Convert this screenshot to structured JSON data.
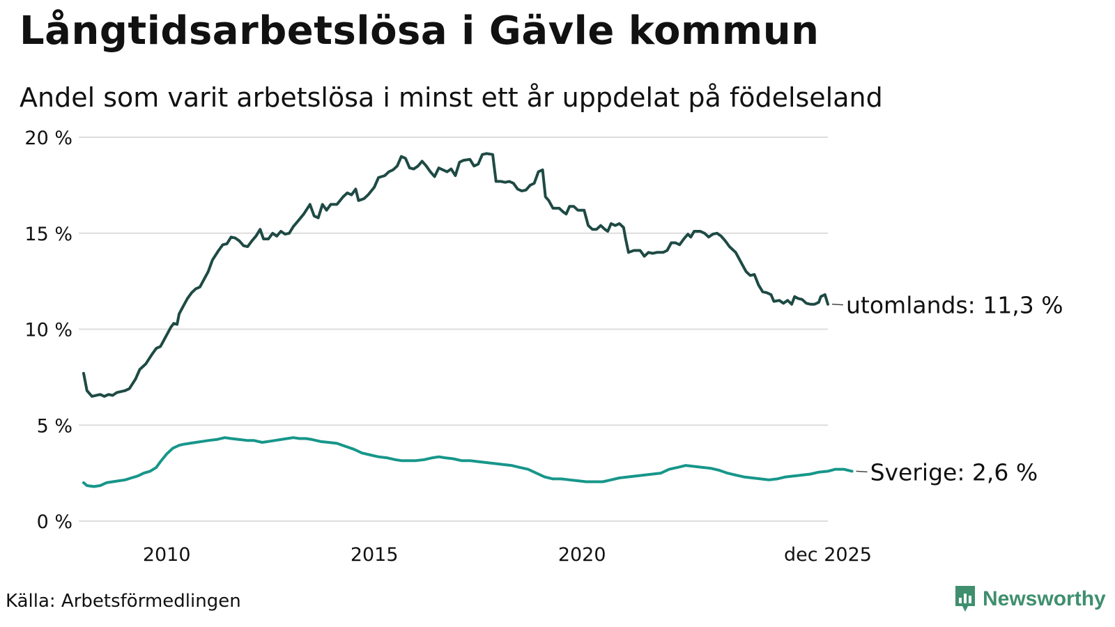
{
  "title": "Långtidsarbetslösa i Gävle kommun",
  "subtitle": "Andel som varit arbetslösa i minst ett år uppdelat på födelseland",
  "source": "Källa: Arbetsförmedlingen",
  "brand": "Newsworthy",
  "colors": {
    "utomlands": "#1e4a44",
    "sverige": "#17968a",
    "grid": "#dddddd",
    "brand": "#3f8f6e"
  },
  "chart_data": {
    "type": "line",
    "title": "Långtidsarbetslösa i Gävle kommun",
    "subtitle": "Andel som varit arbetslösa i minst ett år uppdelat på födelseland",
    "xlabel": "",
    "ylabel": "",
    "xlim": [
      2008.0,
      2025.92
    ],
    "ylim": [
      0,
      20
    ],
    "y_ticks": [
      0,
      5,
      10,
      15,
      20
    ],
    "y_tick_labels": [
      "0 %",
      "5 %",
      "10 %",
      "15 %",
      "20 %"
    ],
    "x_ticks": [
      2010.0,
      2015.0,
      2020.0,
      2025.92
    ],
    "x_tick_labels": [
      "2010",
      "2015",
      "2020",
      "dec 2025"
    ],
    "grid": true,
    "series": [
      {
        "name": "utomlands",
        "end_label": "utomlands: 11,3 %",
        "color": "#1e4a44",
        "points": [
          [
            2008.0,
            7.7
          ],
          [
            2008.08,
            6.8
          ],
          [
            2008.2,
            6.5
          ],
          [
            2008.4,
            6.6
          ],
          [
            2008.5,
            6.5
          ],
          [
            2008.6,
            6.6
          ],
          [
            2008.7,
            6.55
          ],
          [
            2008.8,
            6.7
          ],
          [
            2009.0,
            6.8
          ],
          [
            2009.1,
            6.9
          ],
          [
            2009.25,
            7.4
          ],
          [
            2009.35,
            7.9
          ],
          [
            2009.5,
            8.2
          ],
          [
            2009.65,
            8.7
          ],
          [
            2009.75,
            9.0
          ],
          [
            2009.85,
            9.1
          ],
          [
            2010.0,
            9.7
          ],
          [
            2010.1,
            10.1
          ],
          [
            2010.17,
            10.3
          ],
          [
            2010.25,
            10.25
          ],
          [
            2010.3,
            10.8
          ],
          [
            2010.4,
            11.2
          ],
          [
            2010.5,
            11.6
          ],
          [
            2010.6,
            11.9
          ],
          [
            2010.7,
            12.1
          ],
          [
            2010.8,
            12.2
          ],
          [
            2010.9,
            12.6
          ],
          [
            2011.0,
            13.0
          ],
          [
            2011.1,
            13.6
          ],
          [
            2011.25,
            14.1
          ],
          [
            2011.35,
            14.4
          ],
          [
            2011.45,
            14.45
          ],
          [
            2011.55,
            14.8
          ],
          [
            2011.65,
            14.75
          ],
          [
            2011.75,
            14.6
          ],
          [
            2011.85,
            14.35
          ],
          [
            2011.95,
            14.3
          ],
          [
            2012.05,
            14.6
          ],
          [
            2012.15,
            14.85
          ],
          [
            2012.25,
            15.2
          ],
          [
            2012.33,
            14.7
          ],
          [
            2012.45,
            14.7
          ],
          [
            2012.55,
            15.0
          ],
          [
            2012.65,
            14.85
          ],
          [
            2012.75,
            15.1
          ],
          [
            2012.85,
            14.95
          ],
          [
            2012.95,
            15.0
          ],
          [
            2013.05,
            15.35
          ],
          [
            2013.15,
            15.6
          ],
          [
            2013.3,
            16.0
          ],
          [
            2013.45,
            16.5
          ],
          [
            2013.55,
            15.9
          ],
          [
            2013.65,
            15.8
          ],
          [
            2013.75,
            16.5
          ],
          [
            2013.85,
            16.2
          ],
          [
            2013.95,
            16.5
          ],
          [
            2014.1,
            16.5
          ],
          [
            2014.25,
            16.9
          ],
          [
            2014.35,
            17.1
          ],
          [
            2014.45,
            17.0
          ],
          [
            2014.55,
            17.3
          ],
          [
            2014.62,
            16.7
          ],
          [
            2014.75,
            16.8
          ],
          [
            2014.85,
            17.0
          ],
          [
            2015.0,
            17.4
          ],
          [
            2015.1,
            17.9
          ],
          [
            2015.25,
            18.0
          ],
          [
            2015.35,
            18.2
          ],
          [
            2015.45,
            18.3
          ],
          [
            2015.55,
            18.5
          ],
          [
            2015.65,
            19.0
          ],
          [
            2015.75,
            18.9
          ],
          [
            2015.85,
            18.4
          ],
          [
            2015.95,
            18.35
          ],
          [
            2016.05,
            18.5
          ],
          [
            2016.15,
            18.75
          ],
          [
            2016.25,
            18.5
          ],
          [
            2016.35,
            18.2
          ],
          [
            2016.45,
            17.95
          ],
          [
            2016.55,
            18.4
          ],
          [
            2016.65,
            18.3
          ],
          [
            2016.75,
            18.2
          ],
          [
            2016.85,
            18.35
          ],
          [
            2016.95,
            18.0
          ],
          [
            2017.05,
            18.7
          ],
          [
            2017.15,
            18.8
          ],
          [
            2017.3,
            18.85
          ],
          [
            2017.4,
            18.5
          ],
          [
            2017.5,
            18.6
          ],
          [
            2017.6,
            19.1
          ],
          [
            2017.7,
            19.15
          ],
          [
            2017.85,
            19.1
          ],
          [
            2017.93,
            17.7
          ],
          [
            2018.05,
            17.7
          ],
          [
            2018.15,
            17.65
          ],
          [
            2018.25,
            17.7
          ],
          [
            2018.35,
            17.6
          ],
          [
            2018.45,
            17.3
          ],
          [
            2018.55,
            17.2
          ],
          [
            2018.65,
            17.25
          ],
          [
            2018.75,
            17.5
          ],
          [
            2018.85,
            17.6
          ],
          [
            2018.95,
            18.2
          ],
          [
            2019.05,
            18.3
          ],
          [
            2019.12,
            16.9
          ],
          [
            2019.2,
            16.7
          ],
          [
            2019.3,
            16.3
          ],
          [
            2019.45,
            16.3
          ],
          [
            2019.55,
            16.1
          ],
          [
            2019.62,
            16.0
          ],
          [
            2019.7,
            16.4
          ],
          [
            2019.8,
            16.4
          ],
          [
            2019.9,
            16.2
          ],
          [
            2020.05,
            16.2
          ],
          [
            2020.15,
            15.4
          ],
          [
            2020.25,
            15.2
          ],
          [
            2020.35,
            15.2
          ],
          [
            2020.45,
            15.4
          ],
          [
            2020.55,
            15.2
          ],
          [
            2020.62,
            15.1
          ],
          [
            2020.7,
            15.5
          ],
          [
            2020.8,
            15.4
          ],
          [
            2020.9,
            15.5
          ],
          [
            2021.0,
            15.3
          ],
          [
            2021.05,
            14.7
          ],
          [
            2021.12,
            14.0
          ],
          [
            2021.25,
            14.1
          ],
          [
            2021.4,
            14.1
          ],
          [
            2021.5,
            13.8
          ],
          [
            2021.6,
            14.0
          ],
          [
            2021.7,
            13.95
          ],
          [
            2021.8,
            14.0
          ],
          [
            2021.95,
            14.0
          ],
          [
            2022.05,
            14.1
          ],
          [
            2022.15,
            14.5
          ],
          [
            2022.25,
            14.5
          ],
          [
            2022.35,
            14.4
          ],
          [
            2022.45,
            14.7
          ],
          [
            2022.55,
            14.95
          ],
          [
            2022.62,
            14.8
          ],
          [
            2022.7,
            15.1
          ],
          [
            2022.85,
            15.1
          ],
          [
            2022.95,
            15.0
          ],
          [
            2023.05,
            14.8
          ],
          [
            2023.15,
            14.95
          ],
          [
            2023.25,
            15.0
          ],
          [
            2023.35,
            14.85
          ],
          [
            2023.45,
            14.6
          ],
          [
            2023.55,
            14.3
          ],
          [
            2023.7,
            14.0
          ],
          [
            2023.85,
            13.4
          ],
          [
            2023.95,
            13.0
          ],
          [
            2024.05,
            12.8
          ],
          [
            2024.15,
            12.85
          ],
          [
            2024.25,
            12.3
          ],
          [
            2024.35,
            11.95
          ],
          [
            2024.45,
            11.9
          ],
          [
            2024.55,
            11.8
          ],
          [
            2024.62,
            11.45
          ],
          [
            2024.75,
            11.5
          ],
          [
            2024.85,
            11.35
          ],
          [
            2024.95,
            11.5
          ],
          [
            2025.05,
            11.3
          ],
          [
            2025.12,
            11.7
          ],
          [
            2025.2,
            11.6
          ],
          [
            2025.3,
            11.55
          ],
          [
            2025.4,
            11.35
          ],
          [
            2025.5,
            11.3
          ],
          [
            2025.6,
            11.3
          ],
          [
            2025.7,
            11.4
          ],
          [
            2025.75,
            11.7
          ],
          [
            2025.85,
            11.8
          ],
          [
            2025.92,
            11.3
          ]
        ]
      },
      {
        "name": "Sverige",
        "end_label": "Sverige:  2,6 %",
        "color": "#17968a",
        "points": [
          [
            2008.0,
            2.0
          ],
          [
            2008.08,
            1.85
          ],
          [
            2008.25,
            1.8
          ],
          [
            2008.4,
            1.85
          ],
          [
            2008.55,
            2.0
          ],
          [
            2008.7,
            2.05
          ],
          [
            2008.85,
            2.1
          ],
          [
            2009.0,
            2.15
          ],
          [
            2009.15,
            2.25
          ],
          [
            2009.3,
            2.35
          ],
          [
            2009.45,
            2.5
          ],
          [
            2009.6,
            2.6
          ],
          [
            2009.75,
            2.8
          ],
          [
            2009.85,
            3.1
          ],
          [
            2010.0,
            3.5
          ],
          [
            2010.15,
            3.8
          ],
          [
            2010.3,
            3.95
          ],
          [
            2010.4,
            4.0
          ],
          [
            2010.55,
            4.05
          ],
          [
            2010.7,
            4.1
          ],
          [
            2010.85,
            4.15
          ],
          [
            2011.0,
            4.2
          ],
          [
            2011.2,
            4.25
          ],
          [
            2011.4,
            4.35
          ],
          [
            2011.55,
            4.3
          ],
          [
            2011.75,
            4.25
          ],
          [
            2011.95,
            4.2
          ],
          [
            2012.1,
            4.2
          ],
          [
            2012.3,
            4.1
          ],
          [
            2012.45,
            4.15
          ],
          [
            2012.6,
            4.2
          ],
          [
            2012.75,
            4.25
          ],
          [
            2012.9,
            4.3
          ],
          [
            2013.05,
            4.35
          ],
          [
            2013.2,
            4.3
          ],
          [
            2013.35,
            4.3
          ],
          [
            2013.5,
            4.25
          ],
          [
            2013.7,
            4.15
          ],
          [
            2013.9,
            4.1
          ],
          [
            2014.1,
            4.05
          ],
          [
            2014.3,
            3.9
          ],
          [
            2014.5,
            3.75
          ],
          [
            2014.7,
            3.55
          ],
          [
            2014.9,
            3.45
          ],
          [
            2015.1,
            3.35
          ],
          [
            2015.3,
            3.3
          ],
          [
            2015.5,
            3.2
          ],
          [
            2015.65,
            3.15
          ],
          [
            2015.8,
            3.15
          ],
          [
            2016.0,
            3.15
          ],
          [
            2016.2,
            3.2
          ],
          [
            2016.4,
            3.3
          ],
          [
            2016.55,
            3.35
          ],
          [
            2016.7,
            3.3
          ],
          [
            2016.9,
            3.25
          ],
          [
            2017.1,
            3.15
          ],
          [
            2017.3,
            3.15
          ],
          [
            2017.5,
            3.1
          ],
          [
            2017.7,
            3.05
          ],
          [
            2017.9,
            3.0
          ],
          [
            2018.1,
            2.95
          ],
          [
            2018.3,
            2.9
          ],
          [
            2018.5,
            2.8
          ],
          [
            2018.7,
            2.7
          ],
          [
            2018.9,
            2.5
          ],
          [
            2019.1,
            2.3
          ],
          [
            2019.3,
            2.2
          ],
          [
            2019.5,
            2.2
          ],
          [
            2019.7,
            2.15
          ],
          [
            2019.9,
            2.1
          ],
          [
            2020.1,
            2.05
          ],
          [
            2020.3,
            2.05
          ],
          [
            2020.5,
            2.05
          ],
          [
            2020.7,
            2.15
          ],
          [
            2020.9,
            2.25
          ],
          [
            2021.1,
            2.3
          ],
          [
            2021.3,
            2.35
          ],
          [
            2021.5,
            2.4
          ],
          [
            2021.7,
            2.45
          ],
          [
            2021.9,
            2.5
          ],
          [
            2022.1,
            2.7
          ],
          [
            2022.3,
            2.8
          ],
          [
            2022.5,
            2.9
          ],
          [
            2022.7,
            2.85
          ],
          [
            2022.9,
            2.8
          ],
          [
            2023.1,
            2.75
          ],
          [
            2023.3,
            2.65
          ],
          [
            2023.5,
            2.5
          ],
          [
            2023.7,
            2.4
          ],
          [
            2023.9,
            2.3
          ],
          [
            2024.1,
            2.25
          ],
          [
            2024.3,
            2.2
          ],
          [
            2024.5,
            2.15
          ],
          [
            2024.7,
            2.2
          ],
          [
            2024.9,
            2.3
          ],
          [
            2025.1,
            2.35
          ],
          [
            2025.3,
            2.4
          ],
          [
            2025.5,
            2.45
          ],
          [
            2025.7,
            2.55
          ],
          [
            2025.92,
            2.6
          ],
          [
            2026.1,
            2.7
          ],
          [
            2026.3,
            2.7
          ],
          [
            2026.5,
            2.6
          ]
        ]
      }
    ]
  }
}
